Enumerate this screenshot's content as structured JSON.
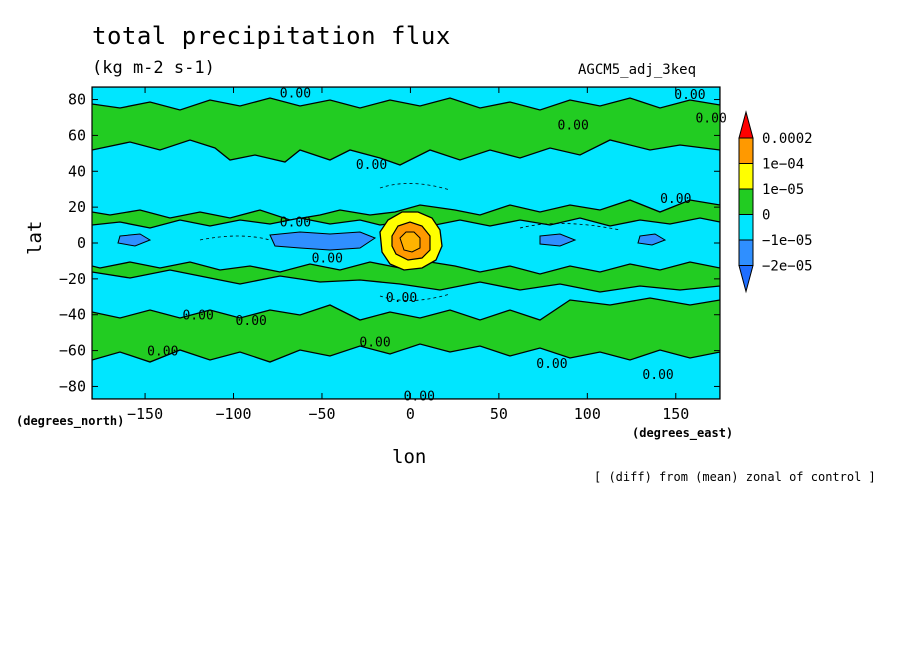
{
  "chart_data": {
    "type": "heatmap",
    "title": "total precipitation flux",
    "units": "(kg m-2 s-1)",
    "run_label": "AGCM5_adj_3keq",
    "xlabel": "lon",
    "ylabel": "lat",
    "x_units_label": "(degrees_east)",
    "y_units_label": "(degrees_north)",
    "note": "[ (diff) from (mean) zonal of control ]",
    "xlim": [
      -180,
      175
    ],
    "ylim": [
      -87,
      87
    ],
    "x_ticks": [
      -150,
      -100,
      -50,
      0,
      50,
      100,
      150
    ],
    "y_ticks": [
      -80,
      -60,
      -40,
      -20,
      0,
      20,
      40,
      60,
      80
    ],
    "colorbar": {
      "levels": [
        "-2e-05",
        "-1e-05",
        "0",
        "1e-05",
        "1e-04",
        "0.0002"
      ],
      "colors": [
        "#2f8fff",
        "#00e6ff",
        "#22cc22",
        "#ffff00",
        "#ff9900",
        "#ff0000"
      ],
      "below_color": "#1e6eff",
      "above_color": "#ff0000"
    },
    "contour_label": "0.00",
    "anomalies": [
      {
        "lon": 5,
        "lat": 0,
        "value": 0.0001
      },
      {
        "lon": -60,
        "lat": 0,
        "value": -2e-05
      },
      {
        "lon": -100,
        "lat": -43,
        "value": -1e-05
      }
    ]
  }
}
